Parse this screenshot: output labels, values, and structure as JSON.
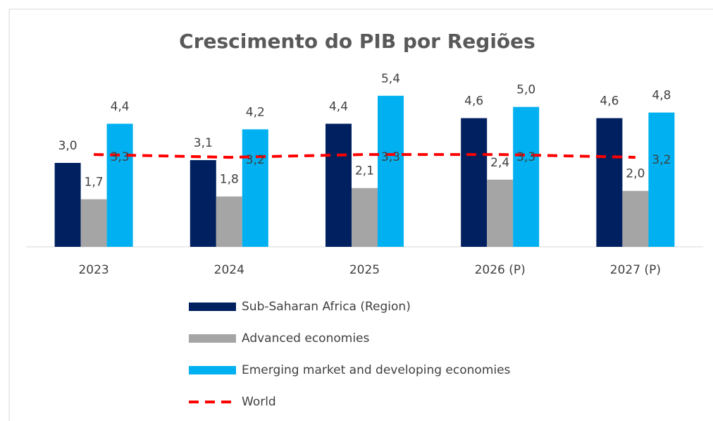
{
  "chart_data": {
    "type": "bar",
    "title": "Crescimento do PIB por Regiões",
    "categories": [
      "2023",
      "2024",
      "2025",
      "2026 (P)",
      "2027 (P)"
    ],
    "ylim": [
      0,
      6
    ],
    "series": [
      {
        "name": "Sub-Saharan Africa (Region)",
        "type": "bar",
        "color": "#002060",
        "values": [
          3.0,
          3.1,
          4.4,
          4.6,
          4.6
        ],
        "value_labels": [
          "3,0",
          "3,1",
          "4,4",
          "4,6",
          "4,6"
        ]
      },
      {
        "name": "Advanced economies",
        "type": "bar",
        "color": "#a5a5a5",
        "values": [
          1.7,
          1.8,
          2.1,
          2.4,
          2.0
        ],
        "value_labels": [
          "1,7",
          "1,8",
          "2,1",
          "2,4",
          "2,0"
        ]
      },
      {
        "name": "Emerging market and developing economies",
        "type": "bar",
        "color": "#00b0f0",
        "values": [
          4.4,
          4.2,
          5.4,
          5.0,
          4.8
        ],
        "value_labels": [
          "4,4",
          "4,2",
          "5,4",
          "5,0",
          "4,8"
        ]
      },
      {
        "name": "World",
        "type": "line",
        "color": "#ff0000",
        "dashed": true,
        "values": [
          3.3,
          3.2,
          3.3,
          3.3,
          3.2
        ],
        "value_labels": [
          "3,3",
          "3,2",
          "3,3",
          "3,3",
          "3,2"
        ]
      }
    ]
  }
}
